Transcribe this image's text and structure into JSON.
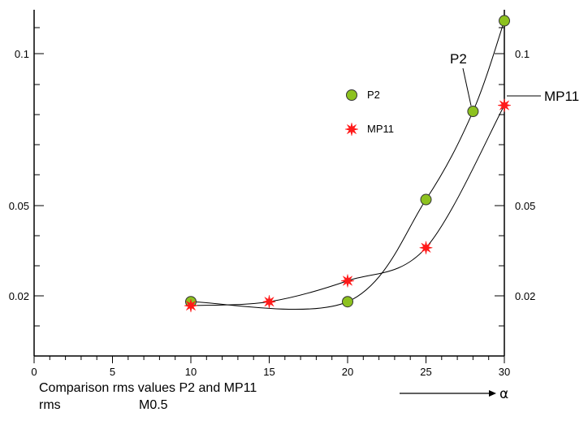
{
  "chart_data": {
    "type": "line",
    "title": "",
    "x": [
      10,
      15,
      20,
      25,
      28,
      30
    ],
    "series": [
      {
        "name": "P2",
        "marker": "circle",
        "color": "#8dc21f",
        "x": [
          10,
          20,
          25,
          28,
          30
        ],
        "values": [
          0.0185,
          0.0185,
          0.052,
          0.081,
          0.113
        ]
      },
      {
        "name": "MP11",
        "marker": "star",
        "color": "#ff1a1a",
        "x": [
          10,
          15,
          20,
          25,
          30
        ],
        "values": [
          0.0175,
          0.0185,
          0.025,
          0.036,
          0.083
        ]
      }
    ],
    "xlim": [
      0,
      30
    ],
    "ylim": [
      0.011,
      0.118
    ],
    "x_ticks": [
      "0",
      "5",
      "10",
      "15",
      "20",
      "25",
      "30"
    ],
    "y_ticks_left": [
      "0.1",
      "0.05",
      "0.02"
    ],
    "y_ticks_right": [
      "0.1",
      "0.05",
      "0.02"
    ],
    "legend": {
      "placement": "upper-middle",
      "entries": [
        "P2",
        "MP11"
      ]
    },
    "annotations": {
      "p2_label": "P2",
      "mp11_label": "MP11"
    },
    "x_axis_symbol": "α"
  },
  "caption": {
    "line1": "Comparison rms values P2 and MP11",
    "line2_left": "rms",
    "line2_right": "M0.5"
  }
}
